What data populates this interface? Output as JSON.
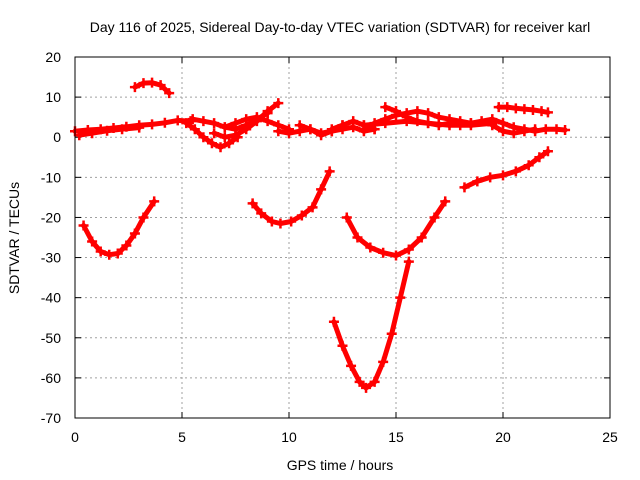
{
  "chart_data": {
    "type": "scatter",
    "title": "Day 116 of 2025, Sidereal Day-to-day VTEC variation (SDTVAR) for receiver karl",
    "xlabel": "GPS time / hours",
    "ylabel": "SDTVAR / TECUs",
    "xlim": [
      0,
      25
    ],
    "ylim": [
      -70,
      20
    ],
    "xticks": [
      "0",
      "5",
      "10",
      "15",
      "20",
      "25"
    ],
    "yticks": [
      "20",
      "10",
      "0",
      "-10",
      "-20",
      "-30",
      "-40",
      "-50",
      "-60",
      "-70"
    ],
    "grid": true,
    "marker_color": "#ff0000",
    "series": [
      {
        "x": [
          0.4,
          0.8,
          1.2,
          1.6,
          2.0,
          2.4,
          2.8,
          3.2,
          3.7
        ],
        "y": [
          -22,
          -26,
          -28.5,
          -29.3,
          -29,
          -27,
          -24,
          -20,
          -16
        ]
      },
      {
        "x": [
          2.8,
          3.2,
          3.6,
          4.0,
          4.4
        ],
        "y": [
          12.5,
          13.5,
          13.6,
          13,
          11
        ]
      },
      {
        "x": [
          8.3,
          8.7,
          9.2,
          9.6,
          10.1,
          10.6,
          11.1,
          11.5,
          11.9
        ],
        "y": [
          -16.5,
          -19,
          -21,
          -21.5,
          -21,
          -19.5,
          -17.5,
          -13,
          -8.5
        ]
      },
      {
        "x": [
          12.1,
          12.5,
          12.9,
          13.3,
          13.6,
          14.0,
          14.4,
          14.8,
          15.2,
          15.6
        ],
        "y": [
          -46,
          -52,
          -57,
          -61,
          -62.5,
          -61,
          -56,
          -49,
          -40,
          -31
        ]
      },
      {
        "x": [
          12.7,
          13.2,
          13.8,
          14.4,
          15.0,
          15.6,
          16.2,
          16.8,
          17.3
        ],
        "y": [
          -20,
          -25,
          -27.5,
          -28.8,
          -29.5,
          -28,
          -25,
          -20,
          -16
        ]
      },
      {
        "x": [
          18.2,
          18.8,
          19.4,
          20.0,
          20.6,
          21.2,
          21.7,
          22.1
        ],
        "y": [
          -12.5,
          -11,
          -10,
          -9.5,
          -8.5,
          -7,
          -5,
          -3.5
        ]
      },
      {
        "x": [
          0.0,
          0.6,
          1.2,
          1.8,
          2.4,
          3.0,
          3.6,
          4.2,
          4.8,
          5.4
        ],
        "y": [
          1.5,
          1.8,
          2.0,
          2.3,
          2.6,
          3.0,
          3.2,
          3.6,
          4.2,
          4.0
        ]
      },
      {
        "x": [
          0.2,
          0.8,
          1.5,
          2.2,
          3.0
        ],
        "y": [
          0.5,
          1.0,
          1.6,
          2.0,
          2.4
        ]
      },
      {
        "x": [
          5.2,
          5.6,
          6.0,
          6.4,
          6.8,
          7.2,
          7.6
        ],
        "y": [
          3.5,
          2.0,
          0.0,
          -1.5,
          -2.5,
          -1.5,
          0.0
        ]
      },
      {
        "x": [
          5.5,
          6.0,
          6.5,
          7.0,
          7.5,
          8.0,
          8.5,
          9.0
        ],
        "y": [
          4.5,
          4.0,
          3.5,
          2.5,
          2.0,
          3.0,
          4.5,
          6.0
        ]
      },
      {
        "x": [
          6.5,
          7.0,
          7.5,
          8.0,
          8.5,
          9.0,
          9.5
        ],
        "y": [
          1.0,
          0.0,
          0.5,
          2.0,
          4.0,
          6.5,
          8.5
        ]
      },
      {
        "x": [
          7.0,
          7.5,
          8.0,
          8.5,
          9.0,
          9.5,
          10.0
        ],
        "y": [
          2.5,
          3.5,
          4.5,
          5.0,
          4.0,
          3.0,
          2.0
        ]
      },
      {
        "x": [
          9.5,
          10.0,
          10.5,
          11.0,
          11.5,
          12.0,
          12.5,
          13.0,
          13.5,
          14.0
        ],
        "y": [
          1.5,
          1.0,
          1.5,
          2.0,
          1.0,
          1.5,
          2.0,
          2.5,
          1.5,
          2.0
        ]
      },
      {
        "x": [
          10.5,
          11.0,
          11.5,
          12.0,
          12.5
        ],
        "y": [
          3.0,
          2.0,
          0.5,
          1.5,
          3.0
        ]
      },
      {
        "x": [
          12.0,
          12.5,
          13.0,
          13.5,
          14.0
        ],
        "y": [
          2.0,
          3.0,
          4.0,
          3.0,
          2.0
        ]
      },
      {
        "x": [
          13.5,
          14.0,
          14.5,
          15.0,
          15.5,
          16.0,
          16.5,
          17.0,
          17.5,
          18.0,
          18.5
        ],
        "y": [
          2.0,
          3.5,
          4.5,
          5.5,
          6.0,
          6.5,
          6.0,
          5.0,
          4.5,
          4.0,
          3.5
        ]
      },
      {
        "x": [
          14.5,
          15.0,
          15.5,
          16.0,
          16.5,
          17.0,
          17.5,
          18.0
        ],
        "y": [
          7.5,
          6.5,
          5.0,
          4.0,
          3.5,
          3.0,
          3.5,
          3.0
        ]
      },
      {
        "x": [
          13.5,
          14.5,
          15.5,
          16.5,
          17.5,
          18.5,
          19.5
        ],
        "y": [
          3.0,
          3.5,
          4.0,
          3.5,
          3.0,
          3.0,
          3.5
        ]
      },
      {
        "x": [
          18.5,
          19.0,
          19.5,
          20.0,
          20.5,
          21.0,
          21.5,
          22.0,
          22.5,
          22.9
        ],
        "y": [
          3.5,
          4.0,
          4.5,
          3.5,
          2.5,
          2.0,
          1.5,
          2.0,
          2.0,
          1.8
        ]
      },
      {
        "x": [
          19.8,
          20.2,
          20.6,
          21.0,
          21.4,
          21.8,
          22.1
        ],
        "y": [
          7.5,
          7.5,
          7.2,
          7.0,
          6.8,
          6.5,
          6.2
        ]
      },
      {
        "x": [
          19.5,
          20.0,
          20.5,
          21.0,
          21.5
        ],
        "y": [
          3.0,
          1.5,
          1.0,
          1.5,
          2.0
        ]
      }
    ]
  }
}
